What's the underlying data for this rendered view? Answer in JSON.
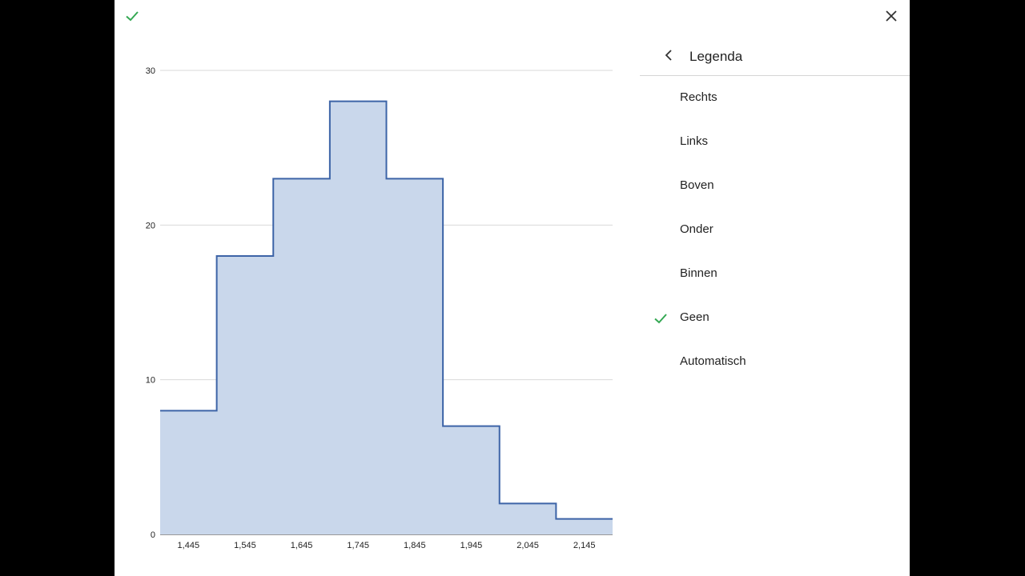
{
  "colors": {
    "accent_green": "#34a853",
    "series_fill": "#c9d7eb",
    "series_stroke": "#3d64a7",
    "gridline": "#dadada"
  },
  "toolbar": {
    "confirm_icon": "check-icon",
    "close_icon": "close-icon"
  },
  "legend_panel": {
    "back_icon": "chevron-left-icon",
    "title": "Legenda",
    "selected": "Geen",
    "options": [
      {
        "label": "Rechts",
        "selected": false
      },
      {
        "label": "Links",
        "selected": false
      },
      {
        "label": "Boven",
        "selected": false
      },
      {
        "label": "Onder",
        "selected": false
      },
      {
        "label": "Binnen",
        "selected": false
      },
      {
        "label": "Geen",
        "selected": true
      },
      {
        "label": "Automatisch",
        "selected": false
      }
    ]
  },
  "chart_data": {
    "type": "area",
    "step": true,
    "x_tick_labels": [
      "1,445",
      "1,545",
      "1,645",
      "1,745",
      "1,845",
      "1,945",
      "2,045",
      "2,145"
    ],
    "bin_edges": [
      1395,
      1495,
      1595,
      1695,
      1795,
      1895,
      1995,
      2095,
      2195
    ],
    "values": [
      8,
      18,
      23,
      28,
      23,
      7,
      2,
      1
    ],
    "y_ticks": [
      0,
      10,
      20,
      30
    ],
    "ylim": [
      0,
      30
    ],
    "grid": true,
    "legend": "none"
  }
}
